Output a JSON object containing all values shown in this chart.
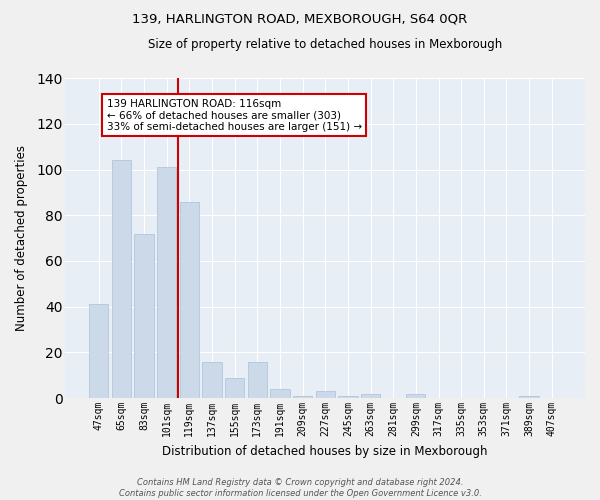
{
  "title": "139, HARLINGTON ROAD, MEXBOROUGH, S64 0QR",
  "subtitle": "Size of property relative to detached houses in Mexborough",
  "xlabel": "Distribution of detached houses by size in Mexborough",
  "ylabel": "Number of detached properties",
  "bar_color": "#ccd9e8",
  "bar_edge_color": "#aac0d8",
  "background_color": "#e8eef5",
  "grid_color": "#ffffff",
  "categories": [
    "47sqm",
    "65sqm",
    "83sqm",
    "101sqm",
    "119sqm",
    "137sqm",
    "155sqm",
    "173sqm",
    "191sqm",
    "209sqm",
    "227sqm",
    "245sqm",
    "263sqm",
    "281sqm",
    "299sqm",
    "317sqm",
    "335sqm",
    "353sqm",
    "371sqm",
    "389sqm",
    "407sqm"
  ],
  "values": [
    41,
    104,
    72,
    101,
    86,
    16,
    9,
    16,
    4,
    1,
    3,
    1,
    2,
    0,
    2,
    0,
    0,
    0,
    0,
    1,
    0
  ],
  "vline_color": "#cc0000",
  "annotation_text": "139 HARLINGTON ROAD: 116sqm\n← 66% of detached houses are smaller (303)\n33% of semi-detached houses are larger (151) →",
  "annotation_box_color": "#ffffff",
  "annotation_box_edge_color": "#cc0000",
  "ylim": [
    0,
    140
  ],
  "yticks": [
    0,
    20,
    40,
    60,
    80,
    100,
    120,
    140
  ],
  "footer": "Contains HM Land Registry data © Crown copyright and database right 2024.\nContains public sector information licensed under the Open Government Licence v3.0.",
  "figsize": [
    6.0,
    5.0
  ],
  "dpi": 100
}
